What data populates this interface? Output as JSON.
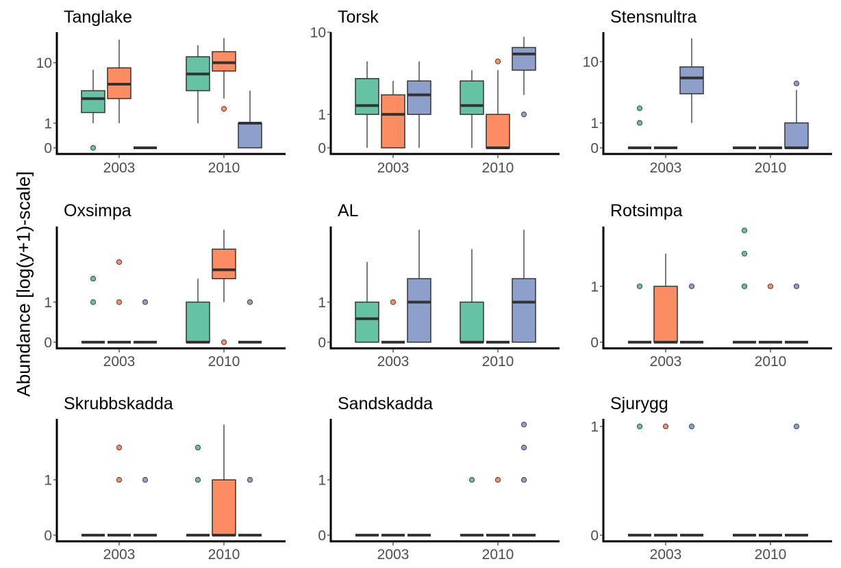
{
  "chart_data": {
    "type": "box",
    "layout": "facet grid 3x3, independent y scales",
    "ylabel": "Abundance [log(y+1)-scale]",
    "y_scale": "log10(y+1)",
    "categories": [
      "2003",
      "2010"
    ],
    "group_colors": [
      "#66C2A5",
      "#FC8D62",
      "#8DA0CB"
    ],
    "grid": false,
    "legend": "none",
    "panels": [
      {
        "title": "Tanglake",
        "yticks": [
          0,
          1,
          10
        ],
        "ylim": [
          0,
          25
        ],
        "boxes": [
          [
            {
              "stats": [
                1,
                1.7,
                3,
                4,
                8
              ],
              "out": [
                0
              ]
            },
            {
              "stats": [
                1,
                3,
                5,
                8.5,
                20
              ],
              "out": []
            },
            {
              "stats": [
                0,
                0,
                0,
                0,
                0
              ],
              "out": []
            }
          ],
          [
            {
              "stats": [
                1,
                4,
                7,
                12,
                17
              ],
              "out": []
            },
            {
              "stats": [
                3,
                7.7,
                10,
                14,
                21
              ],
              "out": [
                2
              ]
            },
            {
              "stats": [
                0,
                0,
                1,
                1,
                4
              ],
              "out": []
            }
          ]
        ]
      },
      {
        "title": "Torsk",
        "yticks": [
          0,
          1,
          10
        ],
        "ylim": [
          0,
          10
        ],
        "boxes": [
          [
            {
              "stats": [
                0,
                1,
                1.4,
                3.2,
                5
              ],
              "out": []
            },
            {
              "stats": [
                0,
                0,
                1,
                2,
                3
              ],
              "out": []
            },
            {
              "stats": [
                0,
                1,
                2,
                3,
                5
              ],
              "out": []
            }
          ],
          [
            {
              "stats": [
                0,
                1,
                1.4,
                3,
                4
              ],
              "out": []
            },
            {
              "stats": [
                0,
                0,
                0,
                1,
                4
              ],
              "out": [
                5
              ]
            },
            {
              "stats": [
                2,
                4,
                6,
                7,
                9
              ],
              "out": [
                1
              ]
            }
          ]
        ]
      },
      {
        "title": "Stensnultra",
        "yticks": [
          0,
          1,
          10
        ],
        "ylim": [
          0,
          24
        ],
        "boxes": [
          [
            {
              "stats": [
                0,
                0,
                0,
                0,
                0
              ],
              "out": [
                1,
                2
              ]
            },
            {
              "stats": [
                0,
                0,
                0,
                0,
                0
              ],
              "out": []
            },
            {
              "stats": [
                1,
                3.5,
                6,
                8.5,
                20
              ],
              "out": []
            }
          ],
          [
            {
              "stats": [
                0,
                0,
                0,
                0,
                0
              ],
              "out": []
            },
            {
              "stats": [
                0,
                0,
                0,
                0,
                0
              ],
              "out": []
            },
            {
              "stats": [
                0,
                0,
                0,
                1,
                4
              ],
              "out": [
                5
              ]
            }
          ]
        ]
      },
      {
        "title": "Oxsimpa",
        "yticks": [
          0,
          1
        ],
        "ylim": [
          0,
          6.4
        ],
        "boxes": [
          [
            {
              "stats": [
                0,
                0,
                0,
                0,
                0
              ],
              "out": [
                1,
                2
              ]
            },
            {
              "stats": [
                0,
                0,
                0,
                0,
                0
              ],
              "out": [
                1,
                3
              ]
            },
            {
              "stats": [
                0,
                0,
                0,
                0,
                0
              ],
              "out": [
                1
              ]
            }
          ],
          [
            {
              "stats": [
                0,
                0,
                0,
                1,
                2
              ],
              "out": []
            },
            {
              "stats": [
                1,
                2,
                2.5,
                4,
                6
              ],
              "out": [
                0
              ]
            },
            {
              "stats": [
                0,
                0,
                0,
                0,
                0
              ],
              "out": [
                1
              ]
            }
          ]
        ]
      },
      {
        "title": "AL",
        "yticks": [
          0,
          1
        ],
        "ylim": [
          0,
          6.4
        ],
        "boxes": [
          [
            {
              "stats": [
                0,
                0,
                0.5,
                1,
                3
              ],
              "out": []
            },
            {
              "stats": [
                0,
                0,
                0,
                0,
                0
              ],
              "out": [
                1
              ]
            },
            {
              "stats": [
                0,
                0,
                1,
                2,
                6
              ],
              "out": []
            }
          ],
          [
            {
              "stats": [
                0,
                0,
                0,
                1,
                4
              ],
              "out": []
            },
            {
              "stats": [
                0,
                0,
                0,
                0,
                0
              ],
              "out": []
            },
            {
              "stats": [
                0,
                0,
                1,
                2,
                6
              ],
              "out": []
            }
          ]
        ]
      },
      {
        "title": "Rotsimpa",
        "yticks": [
          0,
          1
        ],
        "ylim": [
          0,
          3.2
        ],
        "boxes": [
          [
            {
              "stats": [
                0,
                0,
                0,
                0,
                0
              ],
              "out": [
                1
              ]
            },
            {
              "stats": [
                0,
                0,
                0,
                1,
                2
              ],
              "out": []
            },
            {
              "stats": [
                0,
                0,
                0,
                0,
                0
              ],
              "out": [
                1
              ]
            }
          ],
          [
            {
              "stats": [
                0,
                0,
                0,
                0,
                0
              ],
              "out": [
                1,
                2,
                3
              ]
            },
            {
              "stats": [
                0,
                0,
                0,
                0,
                0
              ],
              "out": [
                1
              ]
            },
            {
              "stats": [
                0,
                0,
                0,
                0,
                0
              ],
              "out": [
                1
              ]
            }
          ]
        ]
      },
      {
        "title": "Skrubbskadda",
        "yticks": [
          0,
          1
        ],
        "ylim": [
          0,
          3.3
        ],
        "boxes": [
          [
            {
              "stats": [
                0,
                0,
                0,
                0,
                0
              ],
              "out": []
            },
            {
              "stats": [
                0,
                0,
                0,
                0,
                0
              ],
              "out": [
                1,
                2
              ]
            },
            {
              "stats": [
                0,
                0,
                0,
                0,
                0
              ],
              "out": [
                1
              ]
            }
          ],
          [
            {
              "stats": [
                0,
                0,
                0,
                0,
                0
              ],
              "out": [
                1,
                2
              ]
            },
            {
              "stats": [
                0,
                0,
                0,
                1,
                3
              ],
              "out": []
            },
            {
              "stats": [
                0,
                0,
                0,
                0,
                0
              ],
              "out": [
                1
              ]
            }
          ]
        ]
      },
      {
        "title": "Sandskadda",
        "yticks": [
          0,
          1
        ],
        "ylim": [
          0,
          3.3
        ],
        "boxes": [
          [
            {
              "stats": [
                0,
                0,
                0,
                0,
                0
              ],
              "out": []
            },
            {
              "stats": [
                0,
                0,
                0,
                0,
                0
              ],
              "out": []
            },
            {
              "stats": [
                0,
                0,
                0,
                0,
                0
              ],
              "out": []
            }
          ],
          [
            {
              "stats": [
                0,
                0,
                0,
                0,
                0
              ],
              "out": [
                1
              ]
            },
            {
              "stats": [
                0,
                0,
                0,
                0,
                0
              ],
              "out": [
                1
              ]
            },
            {
              "stats": [
                0,
                0,
                0,
                0,
                0
              ],
              "out": [
                1,
                2,
                3
              ]
            }
          ]
        ]
      },
      {
        "title": "Sjurygg",
        "yticks": [
          0,
          1
        ],
        "ylim": [
          0,
          1.1
        ],
        "boxes": [
          [
            {
              "stats": [
                0,
                0,
                0,
                0,
                0
              ],
              "out": [
                1
              ]
            },
            {
              "stats": [
                0,
                0,
                0,
                0,
                0
              ],
              "out": [
                1
              ]
            },
            {
              "stats": [
                0,
                0,
                0,
                0,
                0
              ],
              "out": [
                1
              ]
            }
          ],
          [
            {
              "stats": [
                0,
                0,
                0,
                0,
                0
              ],
              "out": []
            },
            {
              "stats": [
                0,
                0,
                0,
                0,
                0
              ],
              "out": []
            },
            {
              "stats": [
                0,
                0,
                0,
                0,
                0
              ],
              "out": [
                1
              ]
            }
          ]
        ]
      }
    ]
  }
}
